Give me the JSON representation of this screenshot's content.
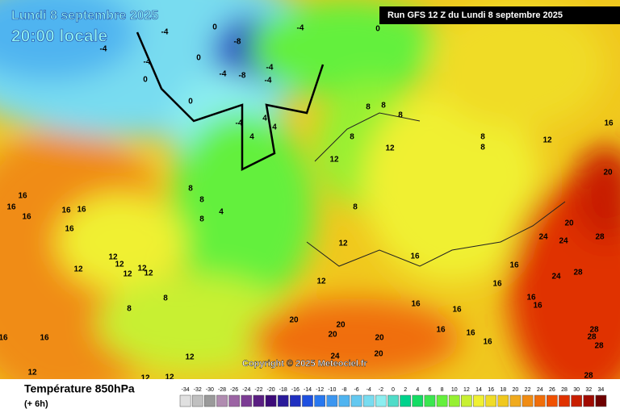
{
  "header": {
    "date": "Lundi 8 septembre 2025",
    "time": "20:00 locale",
    "run": "Run GFS 12 Z du Lundi 8 septembre 2025"
  },
  "copyright": "Copyright © 2025 Meteociel.fr",
  "footer": {
    "title": "Température 850hPa",
    "step": "(+ 6h)"
  },
  "scale": {
    "ticks": [
      -34,
      -32,
      -30,
      -28,
      -26,
      -24,
      -22,
      -20,
      -18,
      -16,
      -14,
      -12,
      -10,
      -8,
      -6,
      -4,
      -2,
      0,
      2,
      4,
      6,
      8,
      10,
      12,
      14,
      16,
      18,
      20,
      22,
      24,
      26,
      28,
      30,
      32,
      34
    ],
    "colors": [
      "#e0e0e0",
      "#c0c0c0",
      "#9a9a9a",
      "#b08cb0",
      "#9c64a4",
      "#7c3c94",
      "#5a1e82",
      "#3c0a78",
      "#2a1a9a",
      "#2030c0",
      "#1e50e0",
      "#2878f0",
      "#3c96f0",
      "#50b4f0",
      "#64c8f0",
      "#78dcf0",
      "#8ceef0",
      "#50dcc8",
      "#00d28c",
      "#14dc64",
      "#3ce650",
      "#64f03c",
      "#96f032",
      "#c8f032",
      "#f0f032",
      "#f0dc28",
      "#f0c81e",
      "#f0aa1e",
      "#f08c14",
      "#f06e0a",
      "#f05000",
      "#e03200",
      "#c81e00",
      "#a00a00",
      "#6e0000"
    ]
  },
  "contour_labels": [
    -4,
    0,
    -4,
    0,
    -8,
    -4,
    -4,
    0,
    -4,
    -8,
    -4,
    0,
    -4,
    0,
    -4,
    4,
    4,
    4,
    8,
    8,
    8,
    8,
    12,
    12,
    8,
    8,
    12,
    8,
    8,
    4,
    8,
    16,
    16,
    16,
    16,
    16,
    16,
    12,
    12,
    12,
    12,
    12,
    12,
    8,
    12,
    12,
    16,
    20,
    24,
    24,
    28,
    16,
    24,
    28,
    16,
    16,
    16,
    8,
    8,
    20,
    20,
    20,
    20,
    16,
    16,
    16,
    28,
    28,
    28,
    20,
    24,
    12,
    16,
    16,
    12,
    12,
    12,
    28,
    16,
    16,
    16,
    20
  ]
}
